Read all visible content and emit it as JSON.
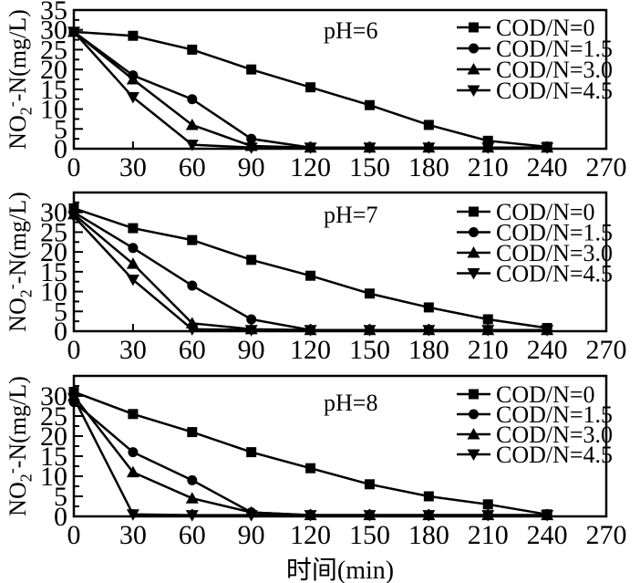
{
  "figure": {
    "background": "#ffffff",
    "ink_color": "#000000",
    "xlabel": "时间(min)",
    "ylabel": {
      "pre": "NO",
      "sub": "2",
      "sup": "-",
      "post": "-N(mg/L)"
    }
  },
  "chart_data": [
    {
      "type": "line",
      "title": "pH=6",
      "xlabel": "时间(min)",
      "ylabel": "NO₂⁻-N(mg/L)",
      "xlim": [
        0,
        270
      ],
      "ylim": [
        0,
        35
      ],
      "xticks": [
        0,
        30,
        60,
        90,
        120,
        150,
        180,
        210,
        240,
        270
      ],
      "yticks": [
        0,
        5,
        10,
        15,
        20,
        25,
        30,
        35
      ],
      "y_minor_step": 2.5,
      "grid": false,
      "legend_position": "top-right",
      "x": [
        0,
        30,
        60,
        90,
        120,
        150,
        180,
        210,
        240
      ],
      "series": [
        {
          "name": "COD/N=0",
          "marker": "square",
          "color": "#000000",
          "values": [
            29.5,
            28.5,
            25,
            20,
            15.5,
            11,
            6,
            2,
            0.5
          ]
        },
        {
          "name": "COD/N=1.5",
          "marker": "circle",
          "color": "#000000",
          "values": [
            29.5,
            18.5,
            12.5,
            2.5,
            0.3,
            0.3,
            0.3,
            0.3,
            0.3
          ]
        },
        {
          "name": "COD/N=3.0",
          "marker": "triangle-up",
          "color": "#000000",
          "values": [
            29.5,
            17.5,
            6,
            0.7,
            0.3,
            0.3,
            0.3,
            0.3,
            0.3
          ]
        },
        {
          "name": "COD/N=4.5",
          "marker": "triangle-down",
          "color": "#000000",
          "values": [
            29.5,
            13,
            1,
            0.3,
            0.3,
            0.3,
            0.3,
            0.3,
            0.3
          ]
        }
      ]
    },
    {
      "type": "line",
      "title": "pH=7",
      "xlabel": "时间(min)",
      "ylabel": "NO₂⁻-N(mg/L)",
      "xlim": [
        0,
        270
      ],
      "ylim": [
        0,
        35
      ],
      "xticks": [
        0,
        30,
        60,
        90,
        120,
        150,
        180,
        210,
        240,
        270
      ],
      "yticks": [
        0,
        5,
        10,
        15,
        20,
        25,
        30
      ],
      "y_minor_step": 2.5,
      "grid": false,
      "legend_position": "top-right",
      "x": [
        0,
        30,
        60,
        90,
        120,
        150,
        180,
        210,
        240
      ],
      "series": [
        {
          "name": "COD/N=0",
          "marker": "square",
          "color": "#000000",
          "values": [
            31,
            26,
            23,
            18,
            14,
            9.5,
            6,
            3,
            0.8
          ]
        },
        {
          "name": "COD/N=1.5",
          "marker": "circle",
          "color": "#000000",
          "values": [
            30,
            21,
            11.5,
            3,
            0.3,
            0.3,
            0.3,
            0.3,
            0.3
          ]
        },
        {
          "name": "COD/N=3.0",
          "marker": "triangle-up",
          "color": "#000000",
          "values": [
            29.5,
            17,
            2,
            0.5,
            0.3,
            0.3,
            0.3,
            0.3,
            0.3
          ]
        },
        {
          "name": "COD/N=4.5",
          "marker": "triangle-down",
          "color": "#000000",
          "values": [
            29,
            13,
            0.5,
            0.3,
            0.3,
            0.3,
            0.3,
            0.3,
            0.3
          ]
        }
      ]
    },
    {
      "type": "line",
      "title": "pH=8",
      "xlabel": "时间(min)",
      "ylabel": "NO₂⁻-N(mg/L)",
      "xlim": [
        0,
        270
      ],
      "ylim": [
        0,
        35
      ],
      "xticks": [
        0,
        30,
        60,
        90,
        120,
        150,
        180,
        210,
        240,
        270
      ],
      "yticks": [
        0,
        5,
        10,
        15,
        20,
        25,
        30
      ],
      "y_minor_step": 2.5,
      "grid": false,
      "legend_position": "top-right",
      "x": [
        0,
        30,
        60,
        90,
        120,
        150,
        180,
        210,
        240
      ],
      "series": [
        {
          "name": "COD/N=0",
          "marker": "square",
          "color": "#000000",
          "values": [
            31,
            25.5,
            21,
            16,
            12,
            8,
            5,
            3,
            0.5
          ]
        },
        {
          "name": "COD/N=1.5",
          "marker": "circle",
          "color": "#000000",
          "values": [
            28.5,
            16,
            9,
            1,
            0.3,
            0.3,
            0.3,
            0.3,
            0.3
          ]
        },
        {
          "name": "COD/N=3.0",
          "marker": "triangle-up",
          "color": "#000000",
          "values": [
            30,
            11,
            4.5,
            1,
            0.3,
            0.3,
            0.3,
            0.3,
            0.3
          ]
        },
        {
          "name": "COD/N=4.5",
          "marker": "triangle-down",
          "color": "#000000",
          "values": [
            29.5,
            0.5,
            0.3,
            0.3,
            0.3,
            0.3,
            0.3,
            0.3,
            0.3
          ]
        }
      ]
    }
  ]
}
